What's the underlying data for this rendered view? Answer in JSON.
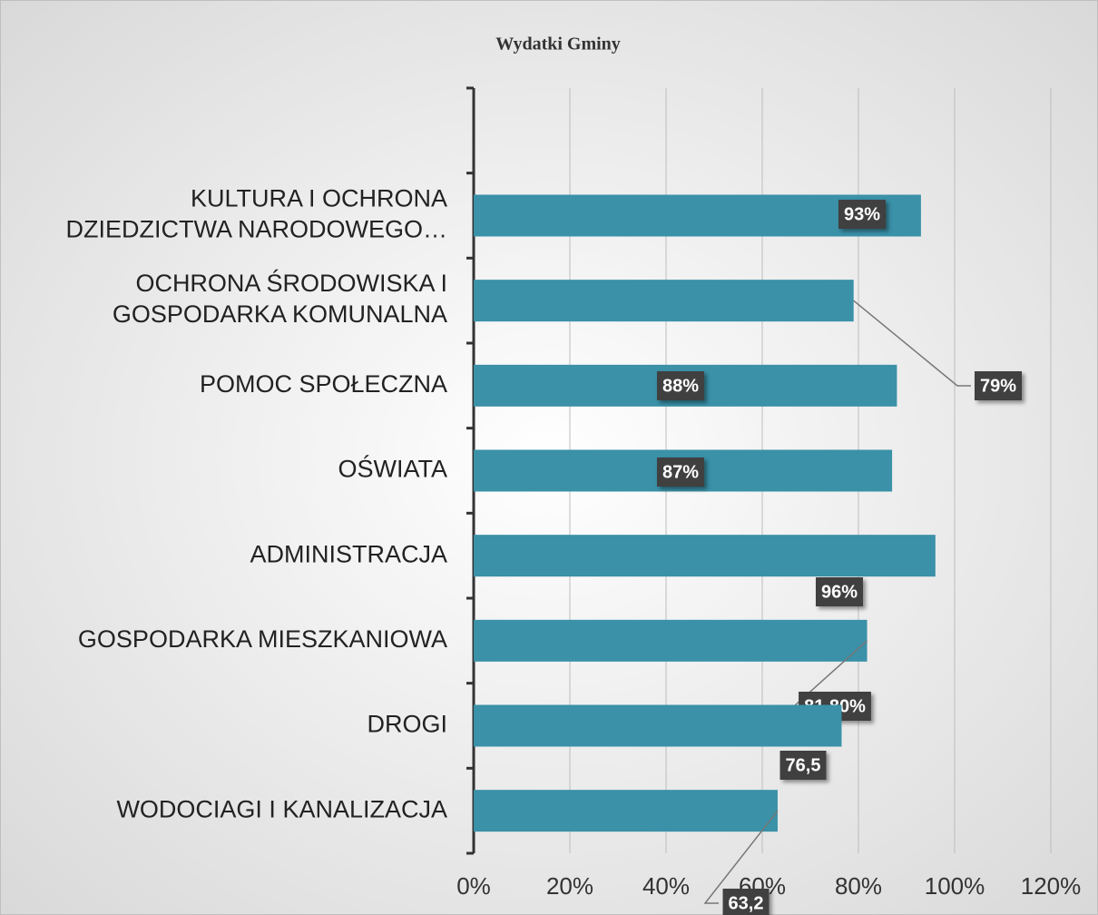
{
  "chart_data": {
    "type": "bar",
    "orientation": "horizontal",
    "title": "Wydatki Gminy",
    "categories": [
      null,
      "KULTURA I OCHRONA DZIEDZICTWA NARODOWEGO…",
      "OCHRONA ŚRODOWISKA I GOSPODARKA KOMUNALNA",
      "POMOC SPOŁECZNA",
      "OŚWIATA",
      "ADMINISTRACJA",
      "GOSPODARKA MIESZKANIOWA",
      "DROGI",
      "WODOCIAGI I KANALIZACJA"
    ],
    "values": [
      null,
      93,
      79,
      88,
      87,
      96,
      81.8,
      76.5,
      63.2
    ],
    "value_labels": [
      null,
      "93%",
      "79%",
      "88%",
      "87%",
      "96%",
      "81,80%",
      "76,5",
      "63,2"
    ],
    "color": "#3a91a8",
    "xlim": [
      0,
      120
    ],
    "xticks": [
      {
        "value": 0,
        "label": "0%"
      },
      {
        "value": 20,
        "label": "20%"
      },
      {
        "value": 40,
        "label": "40%"
      },
      {
        "value": 60,
        "label": "60%"
      },
      {
        "value": 80,
        "label": "80%"
      },
      {
        "value": 100,
        "label": "100%"
      },
      {
        "value": 120,
        "label": "120%"
      }
    ],
    "grid": true
  }
}
